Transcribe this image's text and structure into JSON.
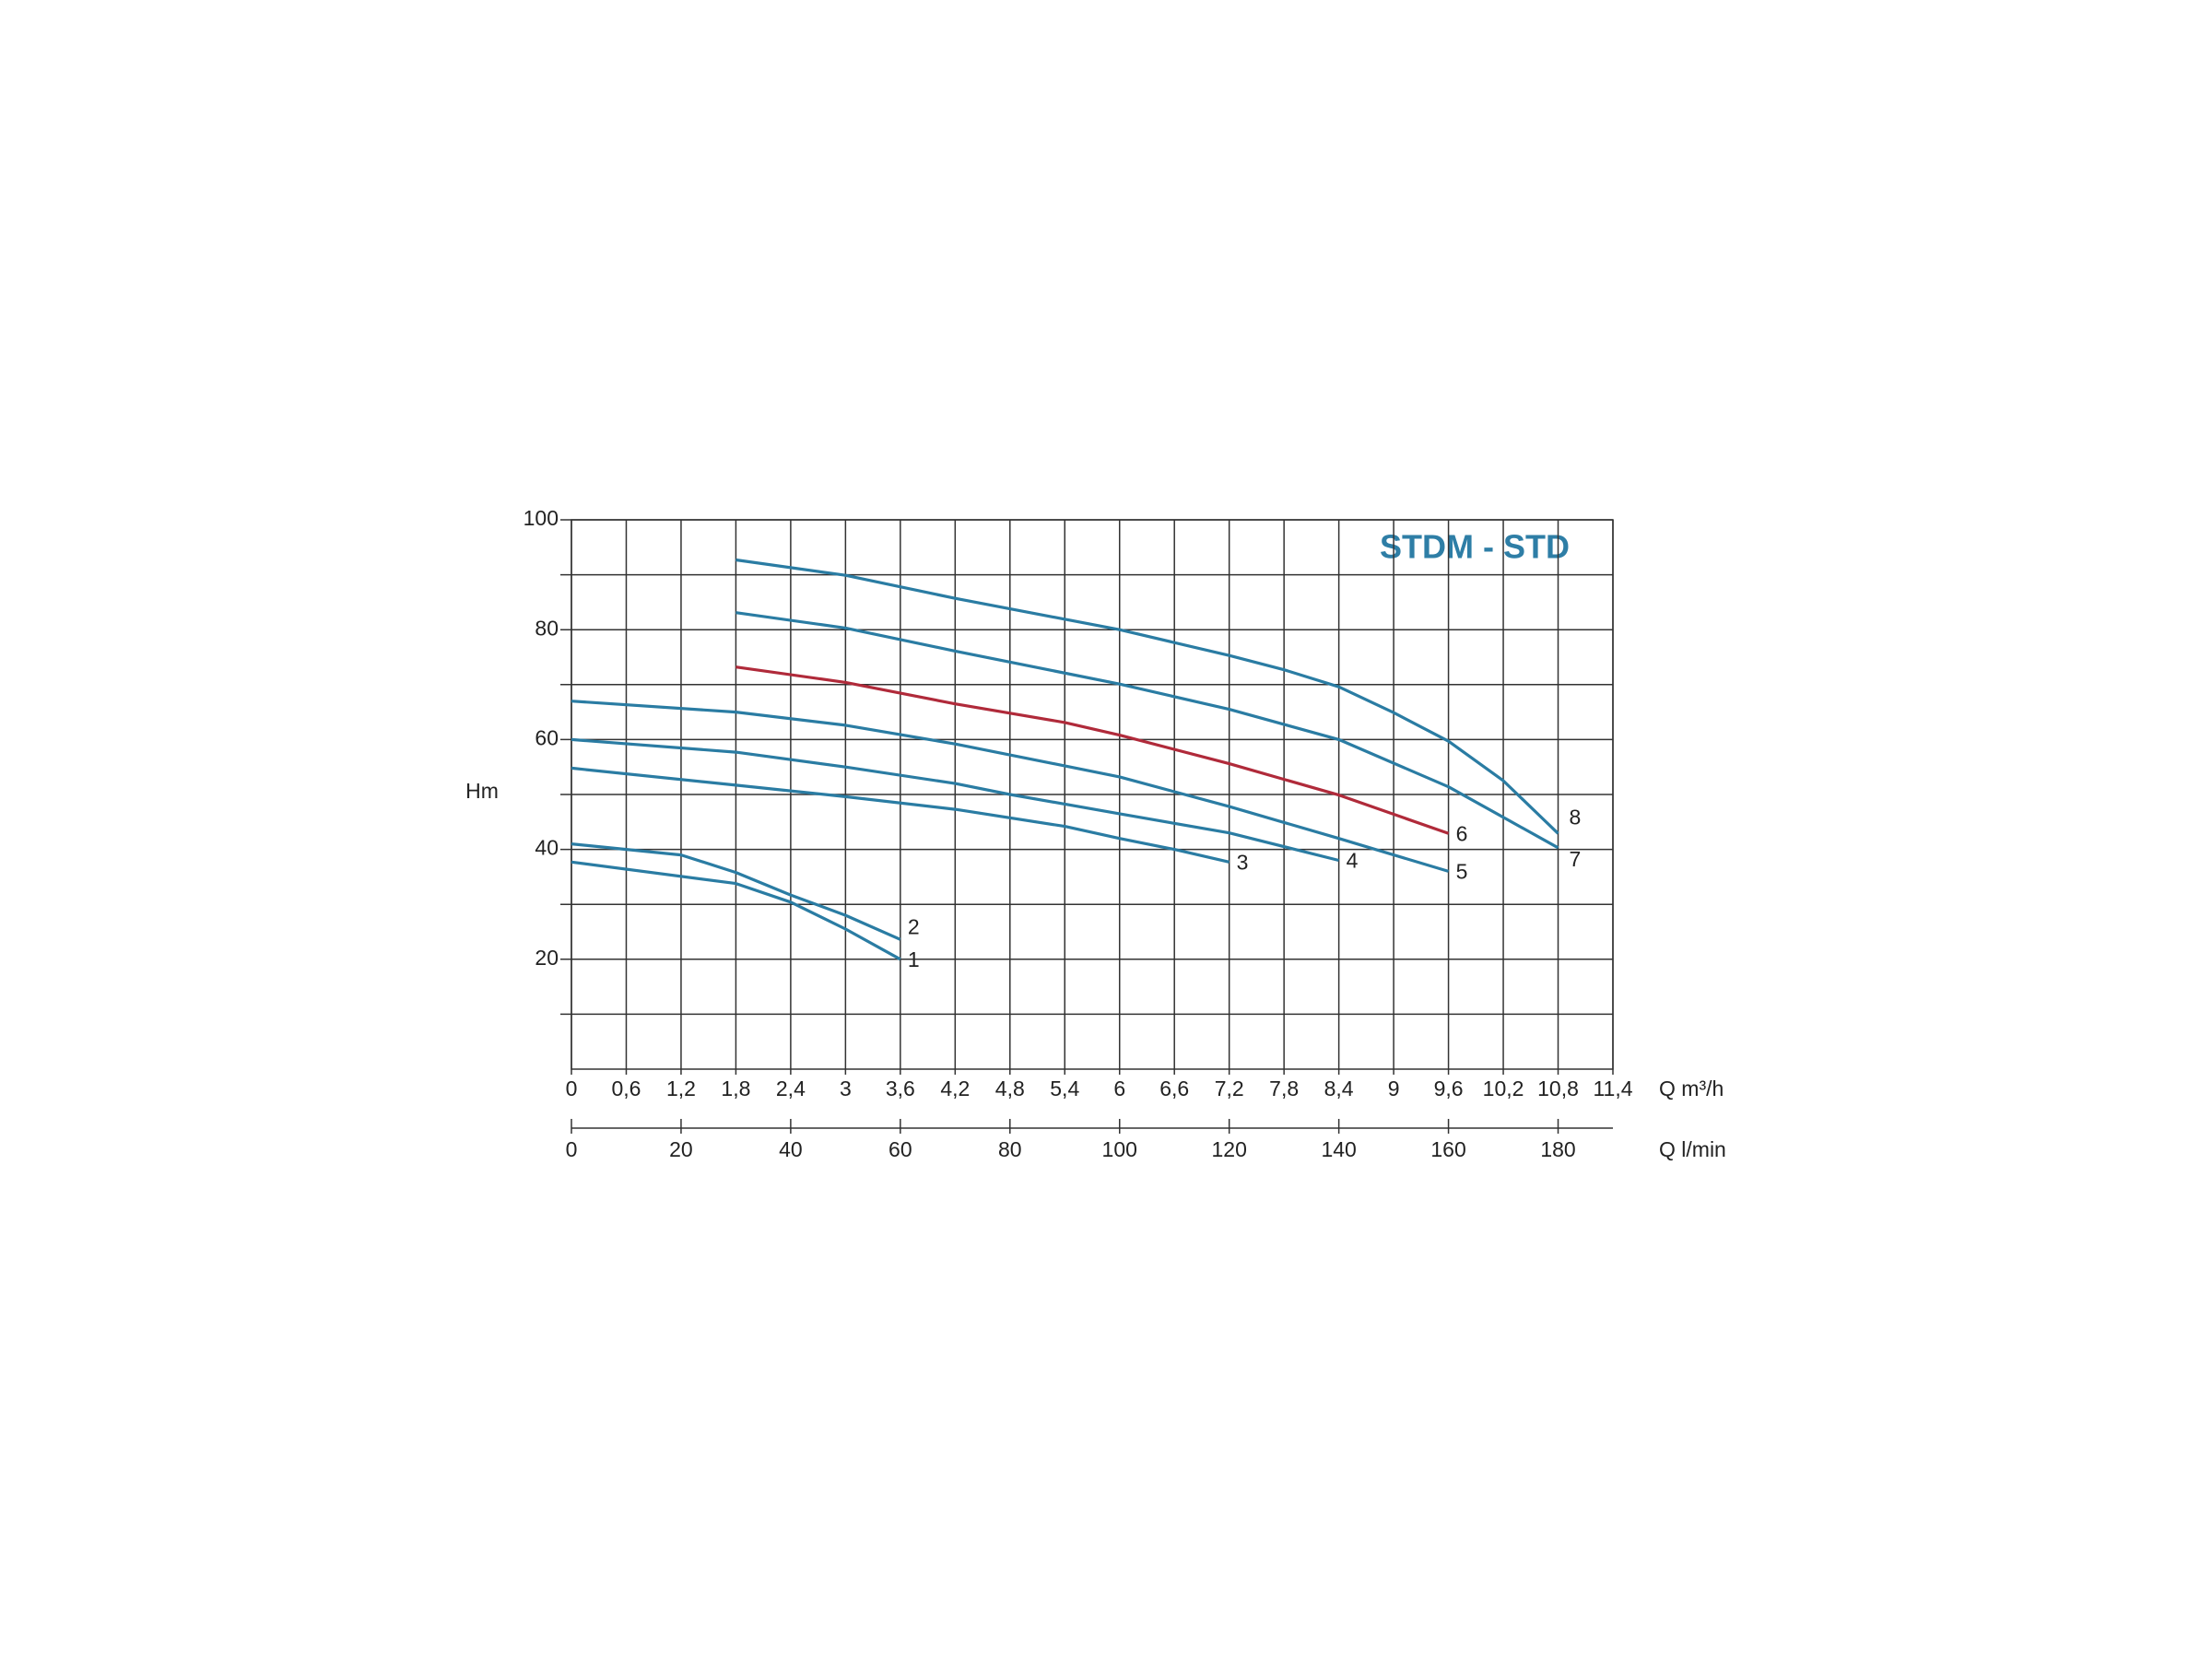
{
  "chart_data": {
    "type": "line",
    "title": "STDM - STD",
    "ylabel": "Hm",
    "xlabel": "Q m³/h",
    "x2label": "Q l/min",
    "xlim": [
      0,
      11.4
    ],
    "xticks": [
      0,
      {
        "value": 0.6,
        "label": "0,6"
      },
      {
        "value": 1.2,
        "label": "1,2"
      },
      {
        "value": 1.8,
        "label": "1,8"
      },
      {
        "value": 2.4,
        "label": "2,4"
      },
      3,
      {
        "value": 3.6,
        "label": "3,6"
      },
      {
        "value": 4.2,
        "label": "4,2"
      },
      {
        "value": 4.8,
        "label": "4,8"
      },
      {
        "value": 5.4,
        "label": "5,4"
      },
      6,
      {
        "value": 6.6,
        "label": "6,6"
      },
      {
        "value": 7.2,
        "label": "7,2"
      },
      {
        "value": 7.8,
        "label": "7,8"
      },
      {
        "value": 8.4,
        "label": "8,4"
      },
      9,
      {
        "value": 9.6,
        "label": "9,6"
      },
      {
        "value": 10.2,
        "label": "10,2"
      },
      {
        "value": 10.8,
        "label": "10,8"
      },
      {
        "value": 11.4,
        "label": "11,4"
      }
    ],
    "x2lim": [
      0,
      190
    ],
    "x2ticks": [
      0,
      20,
      40,
      60,
      80,
      100,
      120,
      140,
      160,
      180
    ],
    "ylim": [
      0,
      100
    ],
    "yticks": [
      20,
      40,
      60,
      80,
      100
    ],
    "y_minor_grid": [
      10,
      30,
      50,
      70,
      90
    ],
    "grid": true,
    "series": [
      {
        "name": "1",
        "color": "#2a7ca3",
        "x": [
          0,
          1.8,
          2.4,
          3,
          3.6
        ],
        "values": [
          37.7,
          33.8,
          30.4,
          25.5,
          20
        ]
      },
      {
        "name": "2",
        "color": "#2a7ca3",
        "x": [
          0,
          1.2,
          1.8,
          2.4,
          3,
          3.6
        ],
        "values": [
          41,
          39,
          35.8,
          31.7,
          28,
          23.6
        ]
      },
      {
        "name": "3",
        "color": "#2a7ca3",
        "x": [
          0,
          1.8,
          3,
          4.2,
          5.4,
          6,
          6.6,
          7.2
        ],
        "values": [
          54.8,
          51.7,
          49.6,
          47.3,
          44.2,
          42,
          40,
          37.7
        ]
      },
      {
        "name": "4",
        "color": "#2a7ca3",
        "x": [
          0,
          1.8,
          3,
          4.2,
          4.8,
          6,
          7.2,
          8.4
        ],
        "values": [
          60,
          57.7,
          55,
          52,
          50,
          46.5,
          43,
          38
        ]
      },
      {
        "name": "5",
        "color": "#2a7ca3",
        "x": [
          0,
          1.8,
          3,
          4.2,
          6,
          7.2,
          8.4,
          9.6
        ],
        "values": [
          67,
          65,
          62.6,
          59.2,
          53.2,
          47.8,
          42,
          36
        ]
      },
      {
        "name": "6",
        "color": "#b02a3a",
        "x": [
          1.8,
          3,
          4.2,
          5.4,
          6,
          7.2,
          8.4,
          9.6
        ],
        "values": [
          73.2,
          70.4,
          66.5,
          63.1,
          60.8,
          55.6,
          49.9,
          42.9
        ]
      },
      {
        "name": "7",
        "color": "#2a7ca3",
        "x": [
          1.8,
          3,
          4.2,
          6,
          7.2,
          8.4,
          9.6,
          10.8
        ],
        "values": [
          83.1,
          80.3,
          76.1,
          70.1,
          65.5,
          60,
          51.4,
          40.3
        ]
      },
      {
        "name": "8",
        "color": "#2a7ca3",
        "x": [
          1.8,
          3,
          4.2,
          6,
          7.2,
          7.8,
          8.4,
          9,
          9.6,
          10.2,
          10.8
        ],
        "values": [
          92.7,
          89.9,
          85.7,
          80,
          75.3,
          72.7,
          69.6,
          64.9,
          59.7,
          52.5,
          42.9
        ]
      }
    ]
  }
}
